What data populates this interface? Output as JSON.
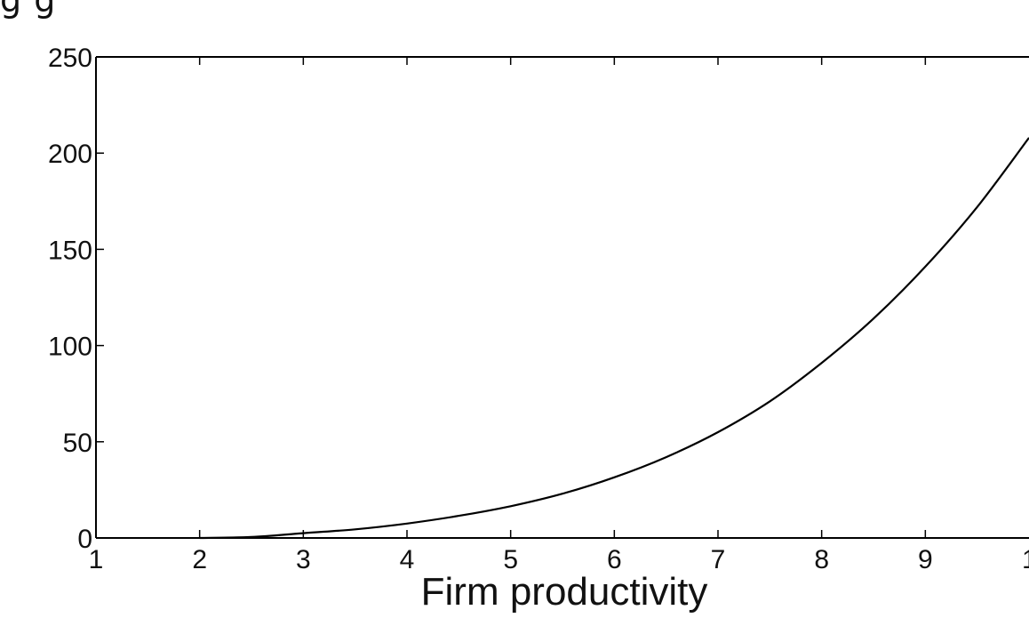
{
  "header": {
    "cropped_text": "g               g"
  },
  "chart_data": {
    "type": "line",
    "title": "",
    "xlabel": "Firm productivity",
    "ylabel": "",
    "xlim": [
      1,
      10
    ],
    "ylim": [
      0,
      250
    ],
    "xticks": [
      "1",
      "2",
      "3",
      "4",
      "5",
      "6",
      "7",
      "8",
      "9",
      "1"
    ],
    "yticks": [
      "0",
      "50",
      "100",
      "150",
      "200",
      "250"
    ],
    "grid": false,
    "series": [
      {
        "x": [
          2,
          2.5,
          3,
          3.5,
          4,
          4.5,
          5,
          5.5,
          6,
          6.5,
          7,
          7.5,
          8,
          8.5,
          9,
          9.5,
          10
        ],
        "y": [
          0,
          0.5,
          2.5,
          4.5,
          7.5,
          11.5,
          16.5,
          23,
          31.5,
          42,
          55,
          71,
          91,
          114,
          141,
          172,
          208
        ]
      }
    ],
    "line_color": "#000000"
  }
}
